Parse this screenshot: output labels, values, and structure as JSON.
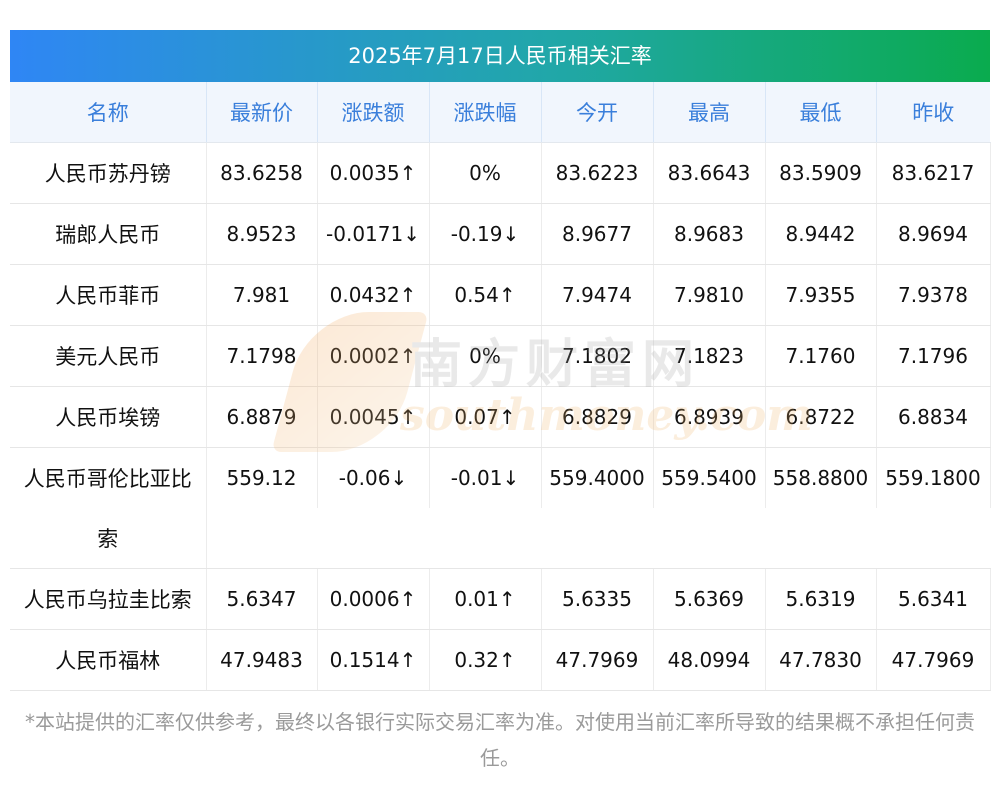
{
  "title": "2025年7月17日人民币相关汇率",
  "headers": [
    "名称",
    "最新价",
    "涨跌额",
    "涨跌幅",
    "今开",
    "最高",
    "最低",
    "昨收"
  ],
  "rows": [
    {
      "name": "人民币苏丹镑",
      "latest": "83.6258",
      "latest_dir": "neutral",
      "change": "0.0035↑",
      "change_dir": "up",
      "pct": "0%",
      "pct_dir": "neutral",
      "open": "83.6223",
      "high": "83.6643",
      "low": "83.5909",
      "prev": "83.6217"
    },
    {
      "name": "瑞郎人民币",
      "latest": "8.9523",
      "latest_dir": "down",
      "change": "-0.0171↓",
      "change_dir": "down",
      "pct": "-0.19↓",
      "pct_dir": "down",
      "open": "8.9677",
      "high": "8.9683",
      "low": "8.9442",
      "prev": "8.9694"
    },
    {
      "name": "人民币菲币",
      "latest": "7.981",
      "latest_dir": "up",
      "change": "0.0432↑",
      "change_dir": "up",
      "pct": "0.54↑",
      "pct_dir": "up",
      "open": "7.9474",
      "high": "7.9810",
      "low": "7.9355",
      "prev": "7.9378"
    },
    {
      "name": "美元人民币",
      "latest": "7.1798",
      "latest_dir": "neutral",
      "change": "0.0002↑",
      "change_dir": "up",
      "pct": "0%",
      "pct_dir": "neutral",
      "open": "7.1802",
      "high": "7.1823",
      "low": "7.1760",
      "prev": "7.1796"
    },
    {
      "name": "人民币埃镑",
      "latest": "6.8879",
      "latest_dir": "up",
      "change": "0.0045↑",
      "change_dir": "up",
      "pct": "0.07↑",
      "pct_dir": "up",
      "open": "6.8829",
      "high": "6.8939",
      "low": "6.8722",
      "prev": "6.8834"
    },
    {
      "name": "人民币哥伦比亚比",
      "name_cont": "索",
      "latest": "559.12",
      "latest_dir": "down",
      "change": "-0.06↓",
      "change_dir": "down",
      "pct": "-0.01↓",
      "pct_dir": "down",
      "open": "559.4000",
      "high": "559.5400",
      "low": "558.8800",
      "prev": "559.1800"
    },
    {
      "name": "人民币乌拉圭比索",
      "latest": "5.6347",
      "latest_dir": "up",
      "change": "0.0006↑",
      "change_dir": "up",
      "pct": "0.01↑",
      "pct_dir": "up",
      "open": "5.6335",
      "high": "5.6369",
      "low": "5.6319",
      "prev": "5.6341"
    },
    {
      "name": "人民币福林",
      "latest": "47.9483",
      "latest_dir": "up",
      "change": "0.1514↑",
      "change_dir": "up",
      "pct": "0.32↑",
      "pct_dir": "up",
      "open": "47.7969",
      "high": "48.0994",
      "low": "47.7830",
      "prev": "47.7969"
    }
  ],
  "watermark": {
    "cn": "南方财富网",
    "en": "southmoney.com"
  },
  "note": "*本站提供的汇率仅供参考，最终以各银行实际交易汇率为准。对使用当前汇率所导致的结果概不承担任何责任。",
  "colors": {
    "up": "#e42c2c",
    "down": "#2b8f2b",
    "header_text": "#3a7fdb",
    "header_bg": "#f1f6fd"
  }
}
